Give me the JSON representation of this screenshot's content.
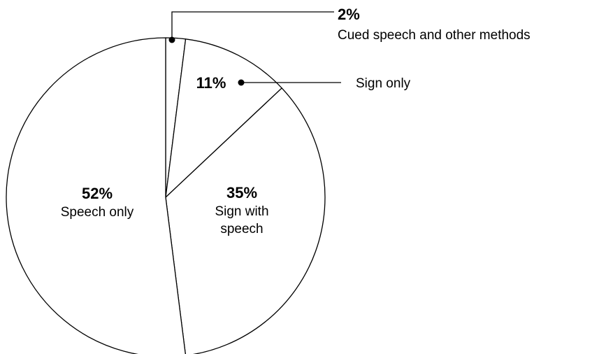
{
  "chart_data": {
    "type": "pie",
    "title": "",
    "start_angle_deg": 0,
    "direction": "clockwise",
    "slices": [
      {
        "label_lines": [
          "Cued speech and other methods"
        ],
        "value": 2,
        "value_label": "2%"
      },
      {
        "label_lines": [
          "Sign only"
        ],
        "value": 11,
        "value_label": "11%"
      },
      {
        "label_lines": [
          "Sign with",
          "speech"
        ],
        "value": 35,
        "value_label": "35%"
      },
      {
        "label_lines": [
          "Speech only"
        ],
        "value": 52,
        "value_label": "52%"
      }
    ]
  }
}
